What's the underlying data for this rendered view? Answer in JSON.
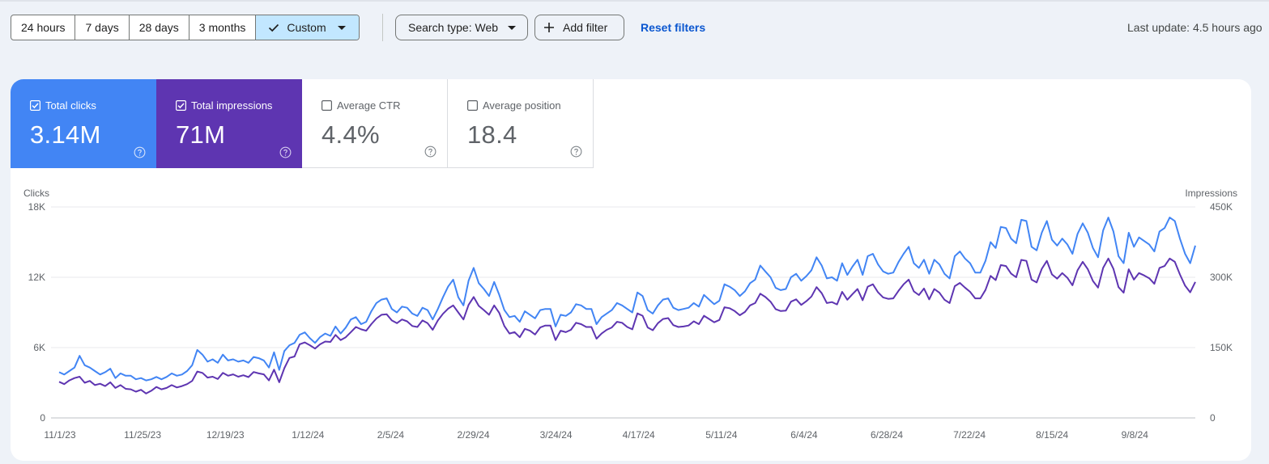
{
  "toolbar": {
    "ranges": [
      "24 hours",
      "7 days",
      "28 days",
      "3 months"
    ],
    "custom_label": "Custom",
    "search_type_label": "Search type: Web",
    "add_filter_label": "Add filter",
    "reset_filters_label": "Reset filters",
    "last_update": "Last update: 4.5 hours ago"
  },
  "metrics": {
    "clicks": {
      "label": "Total clicks",
      "value": "3.14M",
      "checked": true,
      "color": "#4285f4"
    },
    "impressions": {
      "label": "Total impressions",
      "value": "71M",
      "checked": true,
      "color": "#5e35b1"
    },
    "ctr": {
      "label": "Average CTR",
      "value": "4.4%",
      "checked": false
    },
    "position": {
      "label": "Average position",
      "value": "18.4",
      "checked": false
    }
  },
  "chart_data": {
    "type": "line",
    "left_axis_title": "Clicks",
    "right_axis_title": "Impressions",
    "left_ticks": [
      "0",
      "6K",
      "12K",
      "18K"
    ],
    "right_ticks": [
      "0",
      "150K",
      "300K",
      "450K"
    ],
    "ylim_left": [
      0,
      18000
    ],
    "ylim_right": [
      0,
      450000
    ],
    "x_tick_labels": [
      "11/1/23",
      "11/25/23",
      "12/19/23",
      "1/12/24",
      "2/5/24",
      "2/29/24",
      "3/24/24",
      "4/17/24",
      "5/11/24",
      "6/4/24",
      "6/28/24",
      "7/22/24",
      "8/15/24",
      "9/8/24"
    ],
    "grid": true,
    "series": [
      {
        "name": "Total clicks",
        "axis": "left",
        "color": "#4285f4",
        "values": [
          3900,
          3700,
          4000,
          4300,
          5300,
          4500,
          4300,
          4000,
          3700,
          3900,
          4200,
          3400,
          3800,
          3600,
          3600,
          3300,
          3400,
          3200,
          3300,
          3500,
          3300,
          3500,
          3800,
          3600,
          3700,
          4000,
          4500,
          5800,
          5400,
          4800,
          5000,
          4700,
          5400,
          4900,
          5000,
          4800,
          4900,
          4700,
          5200,
          5100,
          4900,
          4300,
          5600,
          4100,
          5700,
          6200,
          6400,
          7100,
          7300,
          6800,
          6400,
          6900,
          7200,
          7000,
          7800,
          7200,
          7700,
          8400,
          8600,
          8000,
          8200,
          9100,
          9800,
          10100,
          10200,
          9300,
          9000,
          9500,
          9400,
          8900,
          8700,
          9400,
          9200,
          8400,
          9300,
          10300,
          11200,
          11800,
          10300,
          9600,
          11700,
          12800,
          11500,
          11000,
          10400,
          11600,
          10500,
          9200,
          8600,
          8700,
          8200,
          9100,
          8800,
          8500,
          9200,
          9300,
          9300,
          7800,
          8800,
          8700,
          9000,
          9700,
          9600,
          9300,
          9300,
          8000,
          8600,
          8900,
          9200,
          9800,
          9600,
          9300,
          9000,
          10700,
          10400,
          9200,
          8900,
          9600,
          10100,
          10200,
          9400,
          9200,
          9300,
          9400,
          9800,
          9500,
          10500,
          10100,
          9700,
          10000,
          11400,
          11200,
          10900,
          10400,
          10800,
          11500,
          11800,
          13000,
          12500,
          12000,
          11100,
          10900,
          11000,
          12000,
          12300,
          11700,
          12100,
          12600,
          13700,
          13000,
          11900,
          12000,
          11700,
          13200,
          12200,
          12900,
          13500,
          12200,
          13800,
          14000,
          13100,
          12500,
          12300,
          12400,
          13300,
          14000,
          14600,
          13200,
          12800,
          13500,
          12300,
          13500,
          13100,
          12300,
          11900,
          13800,
          14200,
          13600,
          13200,
          12400,
          12400,
          13400,
          15000,
          14500,
          16300,
          16200,
          15300,
          14900,
          16900,
          16800,
          14600,
          14300,
          15800,
          16800,
          15200,
          14700,
          15300,
          14800,
          14000,
          15700,
          16600,
          15800,
          14500,
          13700,
          16000,
          17100,
          15900,
          13800,
          13200,
          15800,
          14600,
          15400,
          15100,
          14800,
          14200,
          15900,
          16200,
          17100,
          16800,
          15300,
          14000,
          13200,
          14700
        ]
      },
      {
        "name": "Total impressions",
        "axis": "right",
        "color": "#5e35b1",
        "values": [
          77000,
          72000,
          80000,
          85000,
          88000,
          75000,
          79000,
          70000,
          73000,
          68000,
          76000,
          64000,
          70000,
          62000,
          61000,
          56000,
          60000,
          52000,
          58000,
          66000,
          61000,
          64000,
          70000,
          65000,
          68000,
          72000,
          79000,
          99000,
          96000,
          86000,
          88000,
          83000,
          96000,
          90000,
          93000,
          88000,
          91000,
          87000,
          98000,
          95000,
          93000,
          80000,
          103000,
          76000,
          106000,
          128000,
          131000,
          157000,
          161000,
          155000,
          148000,
          157000,
          163000,
          162000,
          177000,
          166000,
          172000,
          183000,
          194000,
          189000,
          186000,
          200000,
          212000,
          220000,
          221000,
          208000,
          202000,
          210000,
          206000,
          196000,
          194000,
          208000,
          202000,
          188000,
          208000,
          222000,
          233000,
          240000,
          225000,
          210000,
          241000,
          258000,
          239000,
          230000,
          220000,
          240000,
          224000,
          196000,
          180000,
          183000,
          172000,
          190000,
          186000,
          178000,
          193000,
          197000,
          197000,
          166000,
          186000,
          183000,
          188000,
          203000,
          200000,
          194000,
          194000,
          169000,
          180000,
          188000,
          193000,
          205000,
          203000,
          194000,
          189000,
          223000,
          218000,
          193000,
          187000,
          202000,
          211000,
          213000,
          198000,
          194000,
          195000,
          197000,
          206000,
          200000,
          218000,
          211000,
          204000,
          209000,
          236000,
          234000,
          228000,
          219000,
          226000,
          240000,
          245000,
          265000,
          258000,
          248000,
          232000,
          228000,
          229000,
          248000,
          253000,
          241000,
          249000,
          259000,
          279000,
          266000,
          245000,
          247000,
          242000,
          269000,
          252000,
          264000,
          275000,
          251000,
          280000,
          285000,
          268000,
          257000,
          254000,
          255000,
          271000,
          285000,
          295000,
          270000,
          262000,
          276000,
          253000,
          275000,
          267000,
          252000,
          245000,
          281000,
          288000,
          278000,
          269000,
          255000,
          255000,
          273000,
          303000,
          294000,
          326000,
          324000,
          308000,
          300000,
          337000,
          335000,
          295000,
          289000,
          318000,
          335000,
          306000,
          297000,
          309000,
          299000,
          283000,
          315000,
          333000,
          317000,
          292000,
          278000,
          320000,
          340000,
          318000,
          279000,
          267000,
          317000,
          295000,
          309000,
          304000,
          298000,
          286000,
          320000,
          324000,
          340000,
          333000,
          306000,
          282000,
          268000,
          290000
        ]
      }
    ]
  }
}
